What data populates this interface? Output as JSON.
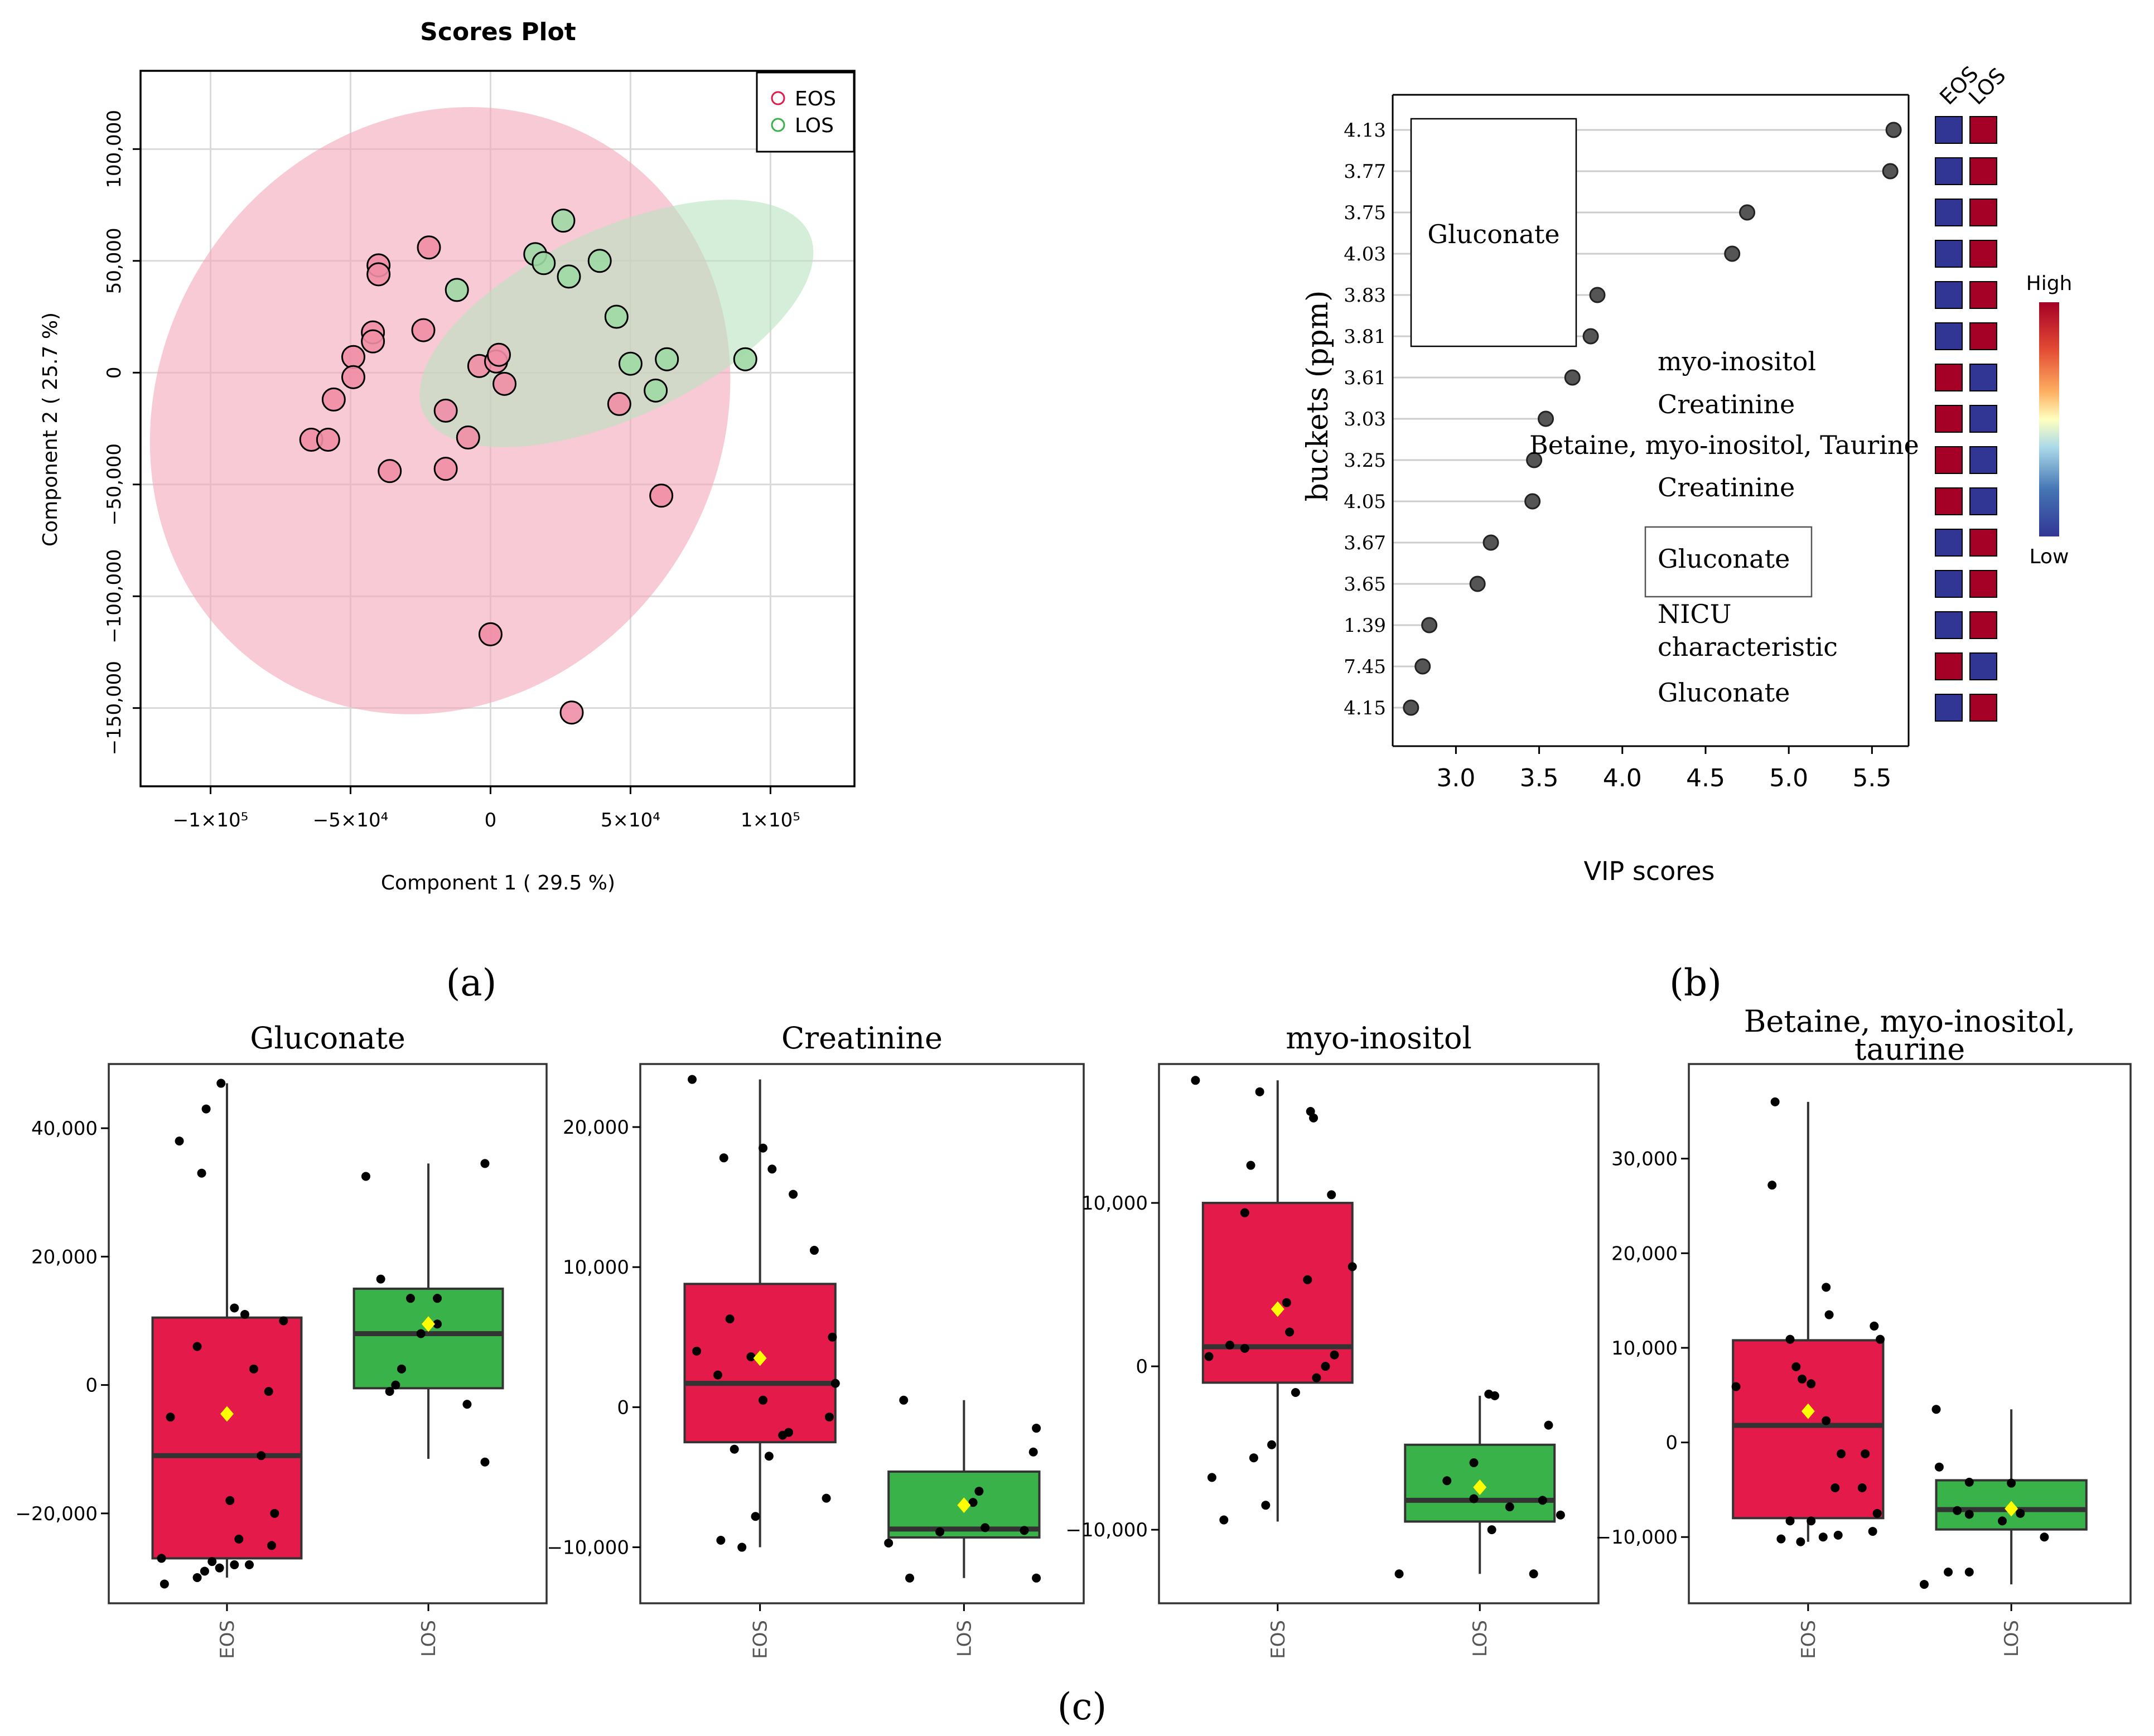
{
  "colors": {
    "eos": "#e31a4a",
    "los": "#39b24a",
    "eos_ellipse": "#f4a6ba",
    "los_ellipse": "#b9e3bf",
    "heat_high": "#a50026",
    "heat_low": "#313695",
    "mean_marker": "#ffff00"
  },
  "panel_labels": {
    "a": "(a)",
    "b": "(b)",
    "c": "(c)"
  },
  "chart_data": [
    {
      "id": "scores",
      "type": "scatter",
      "title": "Scores Plot",
      "xlabel": "Component 1 ( 29.5 %)",
      "ylabel": "Component 2 ( 25.7 %)",
      "xlim": [
        -125000,
        130000
      ],
      "ylim": [
        -185000,
        135000
      ],
      "x_ticks": [
        -100000,
        -50000,
        0,
        50000,
        100000
      ],
      "x_tick_labels": [
        "−1×10⁵",
        "−5×10⁴",
        "0",
        "5×10⁴",
        "1×10⁵"
      ],
      "y_ticks": [
        -150000,
        -100000,
        -50000,
        0,
        50000,
        100000
      ],
      "y_tick_labels": [
        "−150,000",
        "−100,000",
        "−50,000",
        "0",
        "50,000",
        "100,000"
      ],
      "legend": [
        "EOS",
        "LOS"
      ],
      "legend_position": "top-right",
      "ellipses": [
        {
          "group": "EOS",
          "cx": -18000,
          "cy": -17000,
          "rx": 100000,
          "ry": 140000,
          "angle_deg": 33
        },
        {
          "group": "LOS",
          "cx": 45000,
          "cy": 22000,
          "rx": 76000,
          "ry": 42000,
          "angle_deg": -25
        }
      ],
      "series": [
        {
          "name": "EOS",
          "points": [
            [
              -40000,
              48000
            ],
            [
              -40000,
              44000
            ],
            [
              -22000,
              56000
            ],
            [
              -42000,
              18000
            ],
            [
              -42000,
              14000
            ],
            [
              -24000,
              19000
            ],
            [
              -49000,
              7000
            ],
            [
              -49000,
              -2000
            ],
            [
              -56000,
              -12000
            ],
            [
              -64000,
              -30000
            ],
            [
              -58000,
              -30000
            ],
            [
              -36000,
              -44000
            ],
            [
              -16000,
              -17000
            ],
            [
              -16000,
              -43000
            ],
            [
              -8000,
              -29000
            ],
            [
              -4000,
              3000
            ],
            [
              2000,
              5000
            ],
            [
              3000,
              8000
            ],
            [
              5000,
              -5000
            ],
            [
              46000,
              -14000
            ],
            [
              61000,
              -55000
            ],
            [
              0,
              -117000
            ],
            [
              29000,
              -152000
            ]
          ]
        },
        {
          "name": "LOS",
          "points": [
            [
              26000,
              68000
            ],
            [
              16000,
              53000
            ],
            [
              19000,
              49000
            ],
            [
              28000,
              43000
            ],
            [
              39000,
              50000
            ],
            [
              -12000,
              37000
            ],
            [
              45000,
              25000
            ],
            [
              50000,
              4000
            ],
            [
              63000,
              6000
            ],
            [
              91000,
              6000
            ],
            [
              59000,
              -8000
            ]
          ]
        }
      ]
    },
    {
      "id": "vip",
      "type": "scatter",
      "xlabel": "VIP scores",
      "ylabel": "buckets (ppm)",
      "xlim": [
        2.62,
        5.72
      ],
      "x_ticks": [
        3.0,
        3.5,
        4.0,
        4.5,
        5.0,
        5.5
      ],
      "x_tick_labels": [
        "3.0",
        "3.5",
        "4.0",
        "4.5",
        "5.0",
        "5.5"
      ],
      "buckets": [
        "4.13",
        "3.77",
        "3.75",
        "4.03",
        "3.83",
        "3.81",
        "3.61",
        "3.03",
        "3.25",
        "4.05",
        "3.67",
        "3.65",
        "1.39",
        "7.45",
        "4.15"
      ],
      "values": [
        5.63,
        5.61,
        4.75,
        4.66,
        3.85,
        3.81,
        3.7,
        3.54,
        3.47,
        3.46,
        3.21,
        3.13,
        2.84,
        2.8,
        2.73
      ],
      "heatmap_columns": [
        "EOS",
        "LOS"
      ],
      "heatmap": [
        [
          "low",
          "high"
        ],
        [
          "low",
          "high"
        ],
        [
          "low",
          "high"
        ],
        [
          "low",
          "high"
        ],
        [
          "low",
          "high"
        ],
        [
          "low",
          "high"
        ],
        [
          "high",
          "low"
        ],
        [
          "high",
          "low"
        ],
        [
          "high",
          "low"
        ],
        [
          "high",
          "low"
        ],
        [
          "low",
          "high"
        ],
        [
          "low",
          "high"
        ],
        [
          "low",
          "high"
        ],
        [
          "high",
          "low"
        ],
        [
          "low",
          "high"
        ]
      ],
      "colorbar": {
        "high": "High",
        "low": "Low"
      },
      "annotations": {
        "gluconate_box_top": "Gluconate",
        "myo": "myo-inositol",
        "creatinine1": "Creatinine",
        "betaine": "Betaine, myo-inositol, Taurine",
        "creatinine2": "Creatinine",
        "gluconate_box_mid": "Gluconate",
        "nicu1": "NICU",
        "nicu2": "characteristic",
        "gluconate_bottom": "Gluconate"
      }
    },
    {
      "id": "box1",
      "type": "box",
      "title": "Gluconate",
      "ylim": [
        -34000,
        50000
      ],
      "y_ticks": [
        -20000,
        0,
        20000,
        40000
      ],
      "y_tick_labels": [
        "−20,000",
        "0",
        "20,000",
        "40,000"
      ],
      "categories": [
        "EOS",
        "LOS"
      ],
      "boxes": [
        {
          "q1": -27000,
          "median": -11000,
          "q3": 10500,
          "whisker_low": -30000,
          "whisker_high": 47000,
          "mean": -4500,
          "points": [
            [
              0.18,
              38000
            ],
            [
              0.36,
              43000
            ],
            [
              0.46,
              47000
            ],
            [
              0.33,
              33000
            ],
            [
              0.3,
              6000
            ],
            [
              0.12,
              -5000
            ],
            [
              0.55,
              12000
            ],
            [
              0.62,
              11000
            ],
            [
              0.68,
              2500
            ],
            [
              0.73,
              -11000
            ],
            [
              0.78,
              -1000
            ],
            [
              0.88,
              10000
            ],
            [
              0.82,
              -20000
            ],
            [
              0.8,
              -25000
            ],
            [
              0.65,
              -28000
            ],
            [
              0.58,
              -24000
            ],
            [
              0.52,
              -18000
            ],
            [
              0.55,
              -28000
            ],
            [
              0.45,
              -28500
            ],
            [
              0.4,
              -27500
            ],
            [
              0.35,
              -29000
            ],
            [
              0.3,
              -30000
            ],
            [
              0.08,
              -31000
            ],
            [
              0.06,
              -27000
            ]
          ]
        },
        {
          "q1": -500,
          "median": 8000,
          "q3": 15000,
          "whisker_low": -11500,
          "whisker_high": 34500,
          "mean": 9500,
          "points": [
            [
              0.08,
              32500
            ],
            [
              0.18,
              16500
            ],
            [
              0.56,
              13500
            ],
            [
              0.38,
              13500
            ],
            [
              0.56,
              9500
            ],
            [
              0.45,
              8000
            ],
            [
              0.32,
              2500
            ],
            [
              0.24,
              -1000
            ],
            [
              0.28,
              0
            ],
            [
              0.76,
              -3000
            ],
            [
              0.88,
              34500
            ],
            [
              0.88,
              -12000
            ]
          ]
        }
      ]
    },
    {
      "id": "box2",
      "type": "box",
      "title": "Creatinine",
      "ylim": [
        -14000,
        24500
      ],
      "y_ticks": [
        -10000,
        0,
        10000,
        20000
      ],
      "y_tick_labels": [
        "−10,000",
        "0",
        "10,000",
        "20,000"
      ],
      "categories": [
        "EOS",
        "LOS"
      ],
      "boxes": [
        {
          "q1": -2500,
          "median": 1700,
          "q3": 8800,
          "whisker_low": -10000,
          "whisker_high": 23400,
          "mean": 3500,
          "points": [
            [
              0.05,
              23400
            ],
            [
              0.26,
              17800
            ],
            [
              0.52,
              18500
            ],
            [
              0.58,
              17000
            ],
            [
              0.72,
              15200
            ],
            [
              0.86,
              11200
            ],
            [
              0.98,
              5000
            ],
            [
              1.0,
              1700
            ],
            [
              0.96,
              -700
            ],
            [
              0.3,
              6300
            ],
            [
              0.22,
              2300
            ],
            [
              0.44,
              3600
            ],
            [
              0.08,
              4000
            ],
            [
              0.52,
              500
            ],
            [
              0.65,
              -2000
            ],
            [
              0.69,
              -1800
            ],
            [
              0.56,
              -3500
            ],
            [
              0.33,
              -3000
            ],
            [
              0.94,
              -6500
            ],
            [
              0.47,
              -7800
            ],
            [
              0.24,
              -9500
            ],
            [
              0.38,
              -10000
            ]
          ]
        },
        {
          "q1": -9300,
          "median": -8700,
          "q3": -4600,
          "whisker_low": -12200,
          "whisker_high": 500,
          "mean": -7000,
          "points": [
            [
              0.1,
              500
            ],
            [
              0.0,
              -9700
            ],
            [
              0.14,
              -12200
            ],
            [
              0.34,
              -8900
            ],
            [
              0.56,
              -6800
            ],
            [
              0.6,
              -6000
            ],
            [
              0.64,
              -8600
            ],
            [
              0.9,
              -8800
            ],
            [
              0.98,
              -1500
            ],
            [
              0.96,
              -3200
            ],
            [
              0.98,
              -12200
            ]
          ]
        }
      ]
    },
    {
      "id": "box3",
      "type": "box",
      "title": "myo-inositol",
      "ylim": [
        -14500,
        18500
      ],
      "y_ticks": [
        -10000,
        0,
        10000
      ],
      "y_tick_labels": [
        "−10,000",
        "0",
        "10,000"
      ],
      "categories": [
        "EOS",
        "LOS"
      ],
      "boxes": [
        {
          "q1": -1000,
          "median": 1200,
          "q3": 10000,
          "whisker_low": -9500,
          "whisker_high": 17500,
          "mean": 3500,
          "points": [
            [
              -0.05,
              17500
            ],
            [
              0.38,
              16800
            ],
            [
              0.72,
              15600
            ],
            [
              0.74,
              15200
            ],
            [
              0.32,
              12300
            ],
            [
              0.86,
              10500
            ],
            [
              0.28,
              9400
            ],
            [
              1.0,
              6100
            ],
            [
              0.7,
              5300
            ],
            [
              0.56,
              3900
            ],
            [
              0.58,
              2100
            ],
            [
              0.18,
              1300
            ],
            [
              0.28,
              1100
            ],
            [
              0.04,
              600
            ],
            [
              0.88,
              700
            ],
            [
              0.82,
              0
            ],
            [
              0.76,
              -700
            ],
            [
              0.62,
              -1600
            ],
            [
              0.46,
              -4800
            ],
            [
              0.34,
              -5600
            ],
            [
              0.06,
              -6800
            ],
            [
              0.14,
              -9400
            ],
            [
              0.42,
              -8500
            ]
          ]
        },
        {
          "q1": -9500,
          "median": -8200,
          "q3": -4800,
          "whisker_low": -12700,
          "whisker_high": -1800,
          "mean": -7400,
          "points": [
            [
              0.56,
              -1700
            ],
            [
              0.6,
              -1800
            ],
            [
              0.96,
              -3600
            ],
            [
              0.46,
              -5900
            ],
            [
              0.28,
              -7000
            ],
            [
              0.46,
              -8100
            ],
            [
              0.7,
              -8600
            ],
            [
              0.58,
              -10000
            ],
            [
              0.92,
              -8200
            ],
            [
              1.04,
              -9100
            ],
            [
              -0.04,
              -12700
            ],
            [
              0.86,
              -12700
            ]
          ]
        }
      ]
    },
    {
      "id": "box4",
      "type": "box",
      "title": "Betaine, myo-inositol, taurine",
      "title_lines": [
        "Betaine, myo-inositol,",
        "taurine"
      ],
      "ylim": [
        -17000,
        40000
      ],
      "y_ticks": [
        -10000,
        0,
        10000,
        20000,
        30000
      ],
      "y_tick_labels": [
        "−10,000",
        "0",
        "10,000",
        "20,000",
        "30,000"
      ],
      "categories": [
        "EOS",
        "LOS"
      ],
      "boxes": [
        {
          "q1": -8000,
          "median": 1800,
          "q3": 10800,
          "whisker_low": -10500,
          "whisker_high": 36000,
          "mean": 3300,
          "points": [
            [
              0.28,
              36000
            ],
            [
              0.26,
              27200
            ],
            [
              0.62,
              16400
            ],
            [
              0.64,
              13500
            ],
            [
              0.94,
              12300
            ],
            [
              0.98,
              10900
            ],
            [
              0.38,
              10900
            ],
            [
              0.42,
              8000
            ],
            [
              0.46,
              6700
            ],
            [
              0.52,
              6200
            ],
            [
              0.02,
              5900
            ],
            [
              0.62,
              2300
            ],
            [
              0.72,
              -1200
            ],
            [
              0.88,
              -1200
            ],
            [
              0.68,
              -4800
            ],
            [
              0.86,
              -4800
            ],
            [
              0.96,
              -7500
            ],
            [
              0.38,
              -8300
            ],
            [
              0.52,
              -8300
            ],
            [
              0.6,
              -10000
            ],
            [
              0.32,
              -10200
            ],
            [
              0.45,
              -10500
            ],
            [
              0.7,
              -9800
            ],
            [
              0.93,
              -9400
            ]
          ]
        },
        {
          "q1": -9200,
          "median": -7100,
          "q3": -4000,
          "whisker_low": -15000,
          "whisker_high": 3500,
          "mean": -7000,
          "points": [
            [
              0.0,
              3500
            ],
            [
              0.02,
              -2600
            ],
            [
              0.22,
              -4200
            ],
            [
              0.5,
              -4300
            ],
            [
              0.14,
              -7200
            ],
            [
              0.22,
              -7600
            ],
            [
              0.44,
              -8300
            ],
            [
              0.56,
              -7500
            ],
            [
              0.72,
              -10000
            ],
            [
              0.08,
              -13700
            ],
            [
              0.22,
              -13700
            ],
            [
              -0.08,
              -15000
            ]
          ]
        }
      ]
    }
  ]
}
